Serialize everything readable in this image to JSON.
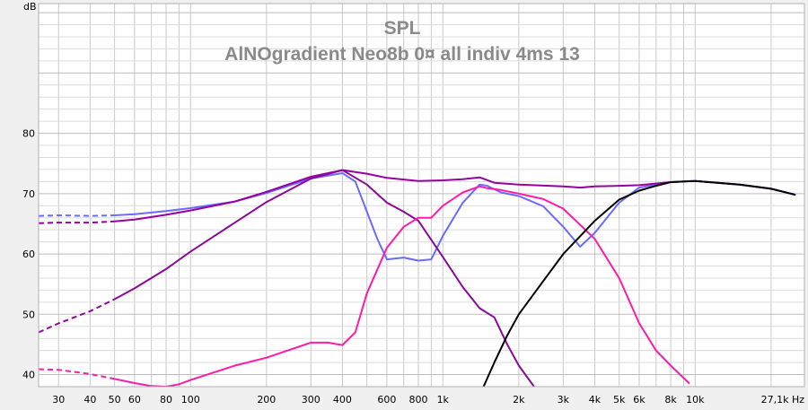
{
  "chart_data": {
    "type": "line",
    "title": "SPL",
    "subtitle": "AlNOgradient Neo8b 0¤ all indiv 4ms 13",
    "ylabel": "dB",
    "xlabel": "",
    "x_unit_label": "Hz",
    "x_scale": "log",
    "xlim": [
      25,
      27100
    ],
    "ylim": [
      38,
      101.5
    ],
    "grid": true,
    "y_ticks": [
      40,
      50,
      60,
      70,
      80
    ],
    "y_tick_labels": [
      "40",
      "50",
      "60",
      "70",
      "80"
    ],
    "x_ticks": [
      30,
      40,
      50,
      60,
      80,
      100,
      200,
      300,
      400,
      600,
      800,
      1000,
      2000,
      3000,
      4000,
      5000,
      6000,
      8000,
      10000,
      27100
    ],
    "x_tick_labels": [
      "30",
      "40",
      "50",
      "60",
      "80",
      "100",
      "200",
      "300",
      "400",
      "600",
      "800",
      "1k",
      "2k",
      "3k",
      "4k",
      "5k",
      "6k",
      "8k",
      "10k",
      "27,1k Hz"
    ],
    "colors": {
      "background": "#f0f0f0",
      "plot_bg": "#ffffff",
      "grid": "#c8c8c8",
      "title": "#8a8a8a"
    },
    "series": [
      {
        "color": "#6a6aff",
        "dashed_below": 50,
        "points": [
          [
            25,
            66.3
          ],
          [
            30,
            66.4
          ],
          [
            40,
            66.3
          ],
          [
            50,
            66.4
          ],
          [
            60,
            66.6
          ],
          [
            80,
            67.1
          ],
          [
            100,
            67.6
          ],
          [
            150,
            68.7
          ],
          [
            200,
            70.1
          ],
          [
            300,
            72.5
          ],
          [
            400,
            73.4
          ],
          [
            450,
            72.0
          ],
          [
            500,
            67.0
          ],
          [
            550,
            62.5
          ],
          [
            600,
            59.1
          ],
          [
            700,
            59.4
          ],
          [
            800,
            58.9
          ],
          [
            900,
            59.1
          ],
          [
            1000,
            63.0
          ],
          [
            1200,
            68.5
          ],
          [
            1400,
            71.5
          ],
          [
            1500,
            71.3
          ],
          [
            1700,
            70.2
          ],
          [
            2000,
            69.6
          ],
          [
            2500,
            67.9
          ],
          [
            3000,
            64.5
          ],
          [
            3500,
            61.2
          ],
          [
            4000,
            63.5
          ],
          [
            5000,
            68.5
          ],
          [
            6000,
            71.0
          ],
          [
            7000,
            71.5
          ],
          [
            8000,
            71.9
          ],
          [
            10000,
            72.1
          ],
          [
            15000,
            71.5
          ],
          [
            20000,
            70.8
          ],
          [
            25000,
            69.8
          ]
        ]
      },
      {
        "color": "#9a00a0",
        "dashed_below": 50,
        "points": [
          [
            25,
            65.1
          ],
          [
            30,
            65.2
          ],
          [
            40,
            65.2
          ],
          [
            50,
            65.4
          ],
          [
            60,
            65.7
          ],
          [
            80,
            66.5
          ],
          [
            100,
            67.2
          ],
          [
            150,
            68.7
          ],
          [
            200,
            70.3
          ],
          [
            300,
            72.8
          ],
          [
            400,
            73.9
          ],
          [
            500,
            73.3
          ],
          [
            600,
            72.6
          ],
          [
            800,
            72.1
          ],
          [
            1000,
            72.2
          ],
          [
            1200,
            72.4
          ],
          [
            1400,
            72.7
          ],
          [
            1600,
            71.8
          ],
          [
            2000,
            71.5
          ],
          [
            3000,
            71.2
          ],
          [
            3500,
            71.0
          ],
          [
            4000,
            71.2
          ],
          [
            5000,
            71.3
          ],
          [
            6000,
            71.4
          ],
          [
            8000,
            71.9
          ],
          [
            10000,
            72.1
          ],
          [
            15000,
            71.5
          ],
          [
            20000,
            70.8
          ],
          [
            25000,
            69.8
          ]
        ]
      },
      {
        "color": "#8a0a98",
        "dashed_below": 50,
        "points": [
          [
            25,
            47.0
          ],
          [
            30,
            48.5
          ],
          [
            40,
            50.5
          ],
          [
            50,
            52.5
          ],
          [
            60,
            54.3
          ],
          [
            80,
            57.5
          ],
          [
            100,
            60.4
          ],
          [
            150,
            65.2
          ],
          [
            200,
            68.6
          ],
          [
            300,
            72.5
          ],
          [
            400,
            73.9
          ],
          [
            500,
            71.5
          ],
          [
            600,
            68.5
          ],
          [
            700,
            67.0
          ],
          [
            800,
            65.5
          ],
          [
            1000,
            59.5
          ],
          [
            1200,
            54.5
          ],
          [
            1400,
            51.0
          ],
          [
            1600,
            49.5
          ],
          [
            1800,
            45.0
          ],
          [
            2000,
            41.5
          ],
          [
            2300,
            38.0
          ]
        ]
      },
      {
        "color": "#ff1aa8",
        "dashed_below": 50,
        "points": [
          [
            25,
            40.9
          ],
          [
            30,
            40.8
          ],
          [
            40,
            40.1
          ],
          [
            50,
            39.3
          ],
          [
            60,
            38.6
          ],
          [
            70,
            38.1
          ],
          [
            80,
            38.0
          ],
          [
            90,
            38.4
          ],
          [
            100,
            39.1
          ],
          [
            150,
            41.5
          ],
          [
            200,
            42.8
          ],
          [
            300,
            45.3
          ],
          [
            350,
            45.3
          ],
          [
            400,
            44.9
          ],
          [
            450,
            47.0
          ],
          [
            500,
            53.5
          ],
          [
            600,
            61.0
          ],
          [
            700,
            64.5
          ],
          [
            800,
            66.0
          ],
          [
            900,
            66.0
          ],
          [
            1000,
            68.0
          ],
          [
            1200,
            70.2
          ],
          [
            1400,
            71.2
          ],
          [
            1500,
            70.9
          ],
          [
            1700,
            70.6
          ],
          [
            2000,
            70.0
          ],
          [
            2500,
            69.1
          ],
          [
            3000,
            67.5
          ],
          [
            4000,
            62.5
          ],
          [
            5000,
            56.0
          ],
          [
            6000,
            48.5
          ],
          [
            7000,
            44.0
          ],
          [
            8000,
            41.5
          ],
          [
            9500,
            38.5
          ]
        ]
      },
      {
        "color": "#000000",
        "dashed_below": 0,
        "points": [
          [
            1450,
            38.0
          ],
          [
            1600,
            42.0
          ],
          [
            1800,
            46.5
          ],
          [
            2000,
            50.0
          ],
          [
            2500,
            55.5
          ],
          [
            3000,
            60.0
          ],
          [
            4000,
            65.5
          ],
          [
            5000,
            69.0
          ],
          [
            6000,
            70.5
          ],
          [
            7000,
            71.3
          ],
          [
            8000,
            71.9
          ],
          [
            10000,
            72.1
          ],
          [
            15000,
            71.5
          ],
          [
            20000,
            70.8
          ],
          [
            25000,
            69.8
          ]
        ]
      }
    ]
  }
}
